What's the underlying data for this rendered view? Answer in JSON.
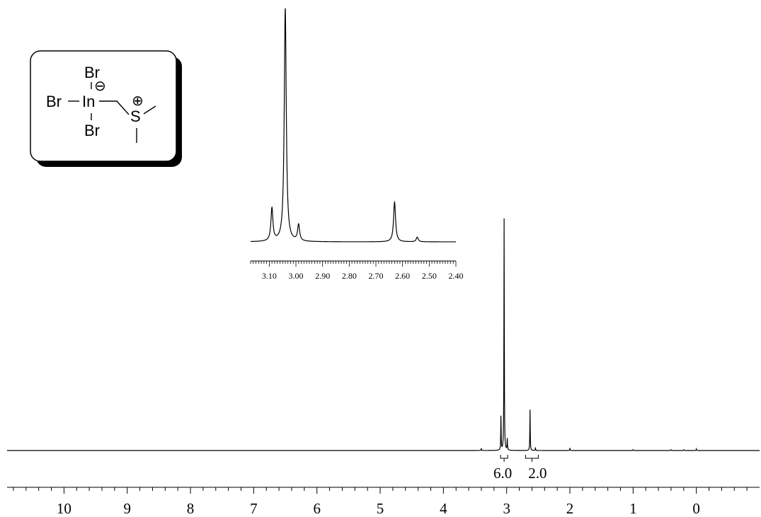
{
  "chart_data": [
    {
      "type": "line",
      "xlabel": "",
      "ylabel": "",
      "x_reversed": true,
      "xlim": [
        10.9,
        -1.0
      ],
      "ticks": [
        "10",
        "9",
        "8",
        "7",
        "6",
        "5",
        "4",
        "3",
        "2",
        "1",
        "0"
      ],
      "tick_values": [
        10,
        9,
        8,
        7,
        6,
        5,
        4,
        3,
        2,
        1,
        0
      ],
      "peaks": [
        {
          "ppm": 3.09,
          "height": 0.15
        },
        {
          "ppm": 3.04,
          "height": 1.0
        },
        {
          "ppm": 2.99,
          "height": 0.05
        },
        {
          "ppm": 2.63,
          "height": 0.18
        },
        {
          "ppm": 2.545,
          "height": 0.012
        },
        {
          "ppm": 3.4,
          "height": 0.01
        },
        {
          "ppm": 2.0,
          "height": 0.01
        },
        {
          "ppm": 1.0,
          "height": 0.004
        },
        {
          "ppm": 0.4,
          "height": 0.004
        },
        {
          "ppm": 0.2,
          "height": 0.004
        },
        {
          "ppm": 0.0,
          "height": 0.007
        }
      ],
      "integrals": [
        {
          "ppm": 3.04,
          "label": "6.0"
        },
        {
          "ppm": 2.6,
          "label": "2.0"
        }
      ]
    },
    {
      "type": "line",
      "title": "",
      "x_reversed": true,
      "xlim": [
        3.17,
        2.4
      ],
      "ticks": [
        "3.10",
        "3.00",
        "2.90",
        "2.80",
        "2.70",
        "2.60",
        "2.50",
        "2.40"
      ],
      "tick_values": [
        3.1,
        3.0,
        2.9,
        2.8,
        2.7,
        2.6,
        2.5,
        2.4
      ],
      "peaks": [
        {
          "ppm": 3.09,
          "height": 0.14
        },
        {
          "ppm": 3.04,
          "height": 1.0
        },
        {
          "ppm": 2.99,
          "height": 0.07
        },
        {
          "ppm": 2.63,
          "height": 0.17
        },
        {
          "ppm": 2.545,
          "height": 0.02
        }
      ]
    }
  ],
  "structure": {
    "atoms": {
      "br_top": "Br",
      "br_left": "Br",
      "br_bottom": "Br",
      "indium": "In",
      "sulfur": "S"
    },
    "charges": {
      "indium_charge": "⊖",
      "sulfur_charge": "⊕"
    }
  }
}
